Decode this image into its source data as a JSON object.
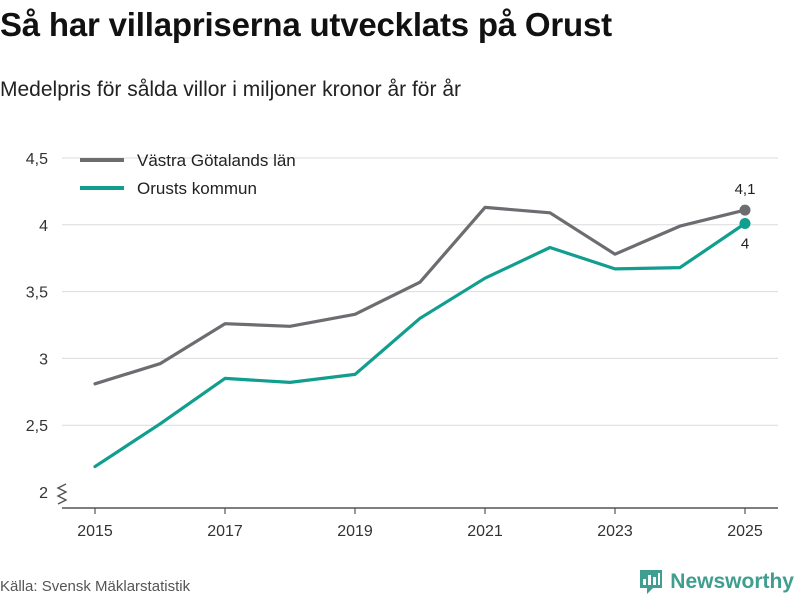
{
  "title": "Så har villapriserna utvecklats på Orust",
  "subtitle": "Medelpris för sålda villor i miljoner kronor år för år",
  "source": "Källa: Svensk Mäklarstatistik",
  "brand": {
    "name": "Newsworthy",
    "icon": "bar-chart-logo-icon",
    "color": "#3f9e8f"
  },
  "chart_data": {
    "type": "line",
    "title": "Så har villapriserna utvecklats på Orust",
    "xlabel": "",
    "ylabel": "",
    "x": [
      2015,
      2016,
      2017,
      2018,
      2019,
      2020,
      2021,
      2022,
      2023,
      2024,
      2025
    ],
    "x_ticks": [
      "2015",
      "2017",
      "2019",
      "2021",
      "2023",
      "2025"
    ],
    "y_ticks": [
      "2",
      "2,5",
      "3",
      "3,5",
      "4",
      "4,5"
    ],
    "ylim": [
      2,
      4.5
    ],
    "series": [
      {
        "name": "Västra Götalands län",
        "color": "#6d6c70",
        "values": [
          2.81,
          2.96,
          3.26,
          3.24,
          3.33,
          3.57,
          4.13,
          4.09,
          3.78,
          3.99,
          4.11
        ],
        "end_label": "4,1"
      },
      {
        "name": "Orusts kommun",
        "color": "#119e8f",
        "values": [
          2.19,
          2.51,
          2.85,
          2.82,
          2.88,
          3.3,
          3.6,
          3.83,
          3.67,
          3.68,
          4.01
        ],
        "end_label": "4"
      }
    ],
    "legend_position": "top-left",
    "grid": true
  }
}
